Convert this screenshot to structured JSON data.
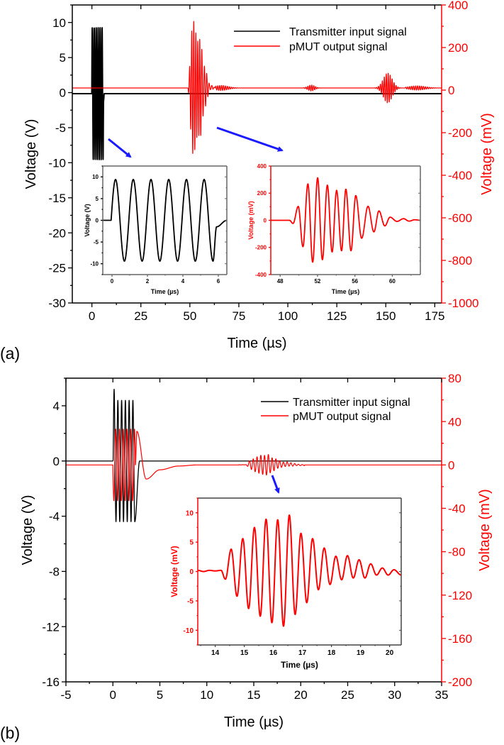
{
  "figure": {
    "panel_labels": [
      "(a)",
      "(b)"
    ],
    "arrow_color": "#1a1aff"
  },
  "chart_data": [
    {
      "id": "a-main",
      "type": "line",
      "panel": "(a)",
      "xlabel": "Time (µs)",
      "ylabel": "Voltage (V)",
      "y2label": "Voltage (mV)",
      "xlim": [
        -10,
        178.5
      ],
      "xticks": [
        0,
        25,
        50,
        75,
        100,
        125,
        150,
        175
      ],
      "xminor": 12.5,
      "ylim": [
        -30,
        12.5
      ],
      "yticks": [
        10,
        5,
        0,
        -5,
        -10,
        -15,
        -20,
        -25,
        -30
      ],
      "yminor": 2.5,
      "y2lim": [
        -1000,
        400
      ],
      "y2ticks": [
        400,
        200,
        0,
        -200,
        -400,
        -600,
        -800,
        -1000
      ],
      "y2minor": 100,
      "y2color": "#ff0000",
      "legend": {
        "position": "top-right",
        "entries": [
          {
            "label": "Transmitter input signal",
            "color": "#000000"
          },
          {
            "label": "pMUT output signal",
            "color": "#ff0000"
          }
        ]
      },
      "series": [
        {
          "name": "Transmitter input signal",
          "axis": "y",
          "color": "#000000",
          "baseline": -0.15,
          "width": 2,
          "components": [
            {
              "kind": "burst",
              "start": -0.05,
              "end": 5.7,
              "freq_MHz": 1,
              "amp": 9.4
            },
            {
              "kind": "extrema",
              "points": [
                [
                  5.7,
                  -9.4
                ],
                [
                  5.95,
                  -1
                ],
                [
                  6.3,
                  0
                ]
              ]
            }
          ]
        },
        {
          "name": "pMUT output signal",
          "axis": "y2",
          "color": "#ff0000",
          "baseline": 10,
          "width": 1.2,
          "components": [
            {
              "kind": "extrema",
              "points": [
                [
                  47,
                  0
                ],
                [
                  49,
                  0
                ],
                [
                  49.38,
                  -23
                ],
                [
                  49.94,
                  102
                ],
                [
                  50.44,
                  -194
                ],
                [
                  50.97,
                  268
                ],
                [
                  51.48,
                  -308
                ],
                [
                  52.01,
                  313
                ],
                [
                  52.52,
                  -290
                ],
                [
                  53.05,
                  259
                ],
                [
                  53.56,
                  -233
                ],
                [
                  54.04,
                  221
                ],
                [
                  54.57,
                  -224
                ],
                [
                  55.03,
                  229
                ],
                [
                  55.58,
                  -224
                ],
                [
                  56.09,
                  182
                ],
                [
                  56.72,
                  -132
                ],
                [
                  57.4,
                  103
                ],
                [
                  58.03,
                  -85
                ],
                [
                  58.57,
                  69
                ],
                [
                  59.2,
                  -41
                ],
                [
                  59.76,
                  23
                ],
                [
                  60.5,
                  -8
                ],
                [
                  61.2,
                  12
                ],
                [
                  61.8,
                  -6
                ],
                [
                  62.4,
                  4
                ],
                [
                  63,
                  0
                ]
              ]
            },
            {
              "kind": "burst",
              "start": 63,
              "end": 80,
              "freq_MHz": 1,
              "amp": 12,
              "envelope": "gauss",
              "center": 66,
              "width": 5
            },
            {
              "kind": "burst",
              "start": 108,
              "end": 117,
              "freq_MHz": 1,
              "amp": 14,
              "envelope": "gauss",
              "center": 112,
              "width": 2.5
            },
            {
              "kind": "burst",
              "start": 144,
              "end": 160,
              "freq_MHz": 1,
              "amp": 70,
              "envelope": "gauss",
              "center": 151,
              "width": 3.2
            },
            {
              "kind": "burst",
              "start": 160,
              "end": 178,
              "freq_MHz": 1,
              "amp": 10,
              "envelope": "gauss",
              "center": 166,
              "width": 6
            }
          ]
        }
      ]
    },
    {
      "id": "a-inset-input",
      "type": "line",
      "panel": "(a)",
      "xlabel": "Time (µs)",
      "ylabel": "Voltage (V)",
      "xlim": [
        -0.52,
        6.48
      ],
      "xticks": [
        0,
        2,
        4,
        6
      ],
      "xminor": 1,
      "ylim": [
        -12.5,
        12.5
      ],
      "yticks": [
        10,
        5,
        0,
        -5,
        -10
      ],
      "yminor": 2.5,
      "series": [
        {
          "name": "Transmitter input signal",
          "axis": "y",
          "color": "#000000",
          "baseline": 0,
          "width": 1.8,
          "components": [
            {
              "kind": "burst",
              "start": -0.05,
              "end": 5.7,
              "freq_MHz": 1,
              "amp": 9.4
            },
            {
              "kind": "extrema",
              "points": [
                [
                  5.7,
                  -9.4
                ],
                [
                  5.9,
                  -1.5
                ],
                [
                  6.48,
                  0
                ]
              ]
            }
          ]
        }
      ]
    },
    {
      "id": "a-inset-output",
      "type": "line",
      "panel": "(a)",
      "xlabel": "Time (µs)",
      "ylabel": "Voltage (mV)",
      "ycolor": "#ff0000",
      "xlim": [
        47,
        63
      ],
      "xticks": [
        48,
        52,
        56,
        60
      ],
      "xminor": 2,
      "ylim": [
        -400,
        400
      ],
      "yticks": [
        400,
        200,
        0,
        -200,
        -400
      ],
      "yminor": 100,
      "series": [
        {
          "name": "pMUT output signal",
          "axis": "y",
          "color": "#ff0000",
          "baseline": 0,
          "width": 1.8,
          "components": [
            {
              "kind": "extrema",
              "points": [
                [
                  47,
                  0
                ],
                [
                  49,
                  0
                ],
                [
                  49.38,
                  -23
                ],
                [
                  49.94,
                  102
                ],
                [
                  50.44,
                  -194
                ],
                [
                  50.97,
                  268
                ],
                [
                  51.48,
                  -308
                ],
                [
                  52.01,
                  313
                ],
                [
                  52.52,
                  -290
                ],
                [
                  53.05,
                  259
                ],
                [
                  53.56,
                  -233
                ],
                [
                  54.04,
                  221
                ],
                [
                  54.57,
                  -224
                ],
                [
                  55.03,
                  229
                ],
                [
                  55.58,
                  -224
                ],
                [
                  56.09,
                  182
                ],
                [
                  56.72,
                  -132
                ],
                [
                  57.4,
                  103
                ],
                [
                  58.03,
                  -85
                ],
                [
                  58.57,
                  69
                ],
                [
                  59.2,
                  -41
                ],
                [
                  59.76,
                  23
                ],
                [
                  60.5,
                  -8
                ],
                [
                  61.2,
                  12
                ],
                [
                  61.8,
                  -6
                ],
                [
                  62.4,
                  4
                ],
                [
                  63,
                  0
                ]
              ]
            }
          ]
        }
      ]
    },
    {
      "id": "b-main",
      "type": "line",
      "panel": "(b)",
      "xlabel": "Time (µs)",
      "ylabel": "Voltage (V)",
      "y2label": "Voltage (mV)",
      "xlim": [
        -5,
        35
      ],
      "xticks": [
        -5,
        0,
        5,
        10,
        15,
        20,
        25,
        30,
        35
      ],
      "xminor": 2.5,
      "ylim": [
        -16,
        6
      ],
      "yticks": [
        4,
        0,
        -4,
        -8,
        -12,
        -16
      ],
      "yminor": 2,
      "y2lim": [
        -200,
        80
      ],
      "y2ticks": [
        80,
        40,
        0,
        -40,
        -80,
        -120,
        -160,
        -200
      ],
      "y2minor": 20,
      "y2color": "#ff0000",
      "legend": {
        "position": "top-right",
        "entries": [
          {
            "label": "Transmitter input signal",
            "color": "#000000"
          },
          {
            "label": "pMUT output signal",
            "color": "#ff0000"
          }
        ]
      },
      "series": [
        {
          "name": "Transmitter input signal",
          "axis": "y",
          "color": "#000000",
          "baseline": 0,
          "width": 1.3,
          "components": [
            {
              "kind": "burst",
              "start": 0.03,
              "end": 2.33,
              "freq_MHz": 2.5,
              "amp": 4.4
            },
            {
              "kind": "extrema",
              "points": [
                [
                  0,
                  0
                ],
                [
                  0.13,
                  0.8
                ],
                [
                  0.25,
                  0
                ]
              ]
            },
            {
              "kind": "extrema",
              "points": [
                [
                  2.33,
                  -4.4
                ],
                [
                  2.85,
                  0
                ]
              ]
            }
          ]
        },
        {
          "name": "pMUT output signal",
          "axis": "y2",
          "color": "#ff0000",
          "baseline": 0,
          "width": 1.2,
          "components": [
            {
              "kind": "burst",
              "start": 0,
              "end": 2.4,
              "freq_MHz": 2.5,
              "amp": -33
            },
            {
              "kind": "extrema",
              "points": [
                [
                  2.4,
                  0
                ],
                [
                  2.55,
                  31
                ],
                [
                  3.55,
                  -13
                ],
                [
                  5,
                  -4.5
                ],
                [
                  7,
                  -1
                ],
                [
                  9,
                  0
                ]
              ]
            },
            {
              "kind": "extrema",
              "points": [
                [
                  13.4,
                  0.2
                ],
                [
                  13.6,
                  0
                ],
                [
                  13.8,
                  0.2
                ],
                [
                  14.0,
                  0.1
                ],
                [
                  14.2,
                  0.2
                ],
                [
                  14.35,
                  -1.3
                ],
                [
                  14.55,
                  3.8
                ],
                [
                  14.75,
                  -4.2
                ],
                [
                  14.95,
                  5.6
                ],
                [
                  15.15,
                  -6.3
                ],
                [
                  15.35,
                  7.5
                ],
                [
                  15.55,
                  -7.6
                ],
                [
                  15.75,
                  8.9
                ],
                [
                  15.95,
                  -8.7
                ],
                [
                  16.15,
                  8.8
                ],
                [
                  16.35,
                  -9.3
                ],
                [
                  16.55,
                  9.6
                ],
                [
                  16.75,
                  -7.3
                ],
                [
                  16.95,
                  6.5
                ],
                [
                  17.15,
                  -5.3
                ],
                [
                  17.35,
                  5.6
                ],
                [
                  17.55,
                  -3.1
                ],
                [
                  17.75,
                  4.0
                ],
                [
                  17.95,
                  -2.2
                ],
                [
                  18.15,
                  2.6
                ],
                [
                  18.35,
                  -1.4
                ],
                [
                  18.55,
                  2.7
                ],
                [
                  18.75,
                  -1.1
                ],
                [
                  18.95,
                  2.0
                ],
                [
                  19.15,
                  -1.1
                ],
                [
                  19.35,
                  1.3
                ],
                [
                  19.55,
                  -0.6
                ],
                [
                  19.75,
                  0.6
                ],
                [
                  19.95,
                  -0.6
                ],
                [
                  20.15,
                  0.3
                ],
                [
                  20.4,
                  -0.6
                ]
              ]
            }
          ]
        }
      ]
    },
    {
      "id": "b-inset-output",
      "type": "line",
      "panel": "(b)",
      "xlabel": "Time (µs)",
      "ylabel": "Voltage (mV)",
      "ycolor": "#ff0000",
      "xlim": [
        13.4,
        20.4
      ],
      "xticks": [
        14,
        15,
        16,
        17,
        18,
        19,
        20
      ],
      "xminor": 0.5,
      "ylim": [
        -12.5,
        12.5
      ],
      "yticks": [
        10,
        5,
        0,
        -5,
        -10
      ],
      "yminor": 2.5,
      "series": [
        {
          "name": "pMUT output signal",
          "axis": "y",
          "color": "#ff0000",
          "baseline": 0,
          "width": 2,
          "components": [
            {
              "kind": "extrema",
              "points": [
                [
                  13.4,
                  0.2
                ],
                [
                  13.6,
                  0
                ],
                [
                  13.8,
                  0.2
                ],
                [
                  14.0,
                  0.1
                ],
                [
                  14.2,
                  0.2
                ],
                [
                  14.35,
                  -1.3
                ],
                [
                  14.55,
                  3.8
                ],
                [
                  14.75,
                  -4.2
                ],
                [
                  14.95,
                  5.6
                ],
                [
                  15.15,
                  -6.3
                ],
                [
                  15.35,
                  7.5
                ],
                [
                  15.55,
                  -7.6
                ],
                [
                  15.75,
                  8.9
                ],
                [
                  15.95,
                  -8.7
                ],
                [
                  16.15,
                  8.8
                ],
                [
                  16.35,
                  -9.3
                ],
                [
                  16.55,
                  9.6
                ],
                [
                  16.75,
                  -7.3
                ],
                [
                  16.95,
                  6.5
                ],
                [
                  17.15,
                  -5.3
                ],
                [
                  17.35,
                  5.6
                ],
                [
                  17.55,
                  -3.1
                ],
                [
                  17.75,
                  4.0
                ],
                [
                  17.95,
                  -2.2
                ],
                [
                  18.15,
                  2.6
                ],
                [
                  18.35,
                  -1.4
                ],
                [
                  18.55,
                  2.7
                ],
                [
                  18.75,
                  -1.1
                ],
                [
                  18.95,
                  2.0
                ],
                [
                  19.15,
                  -1.1
                ],
                [
                  19.35,
                  1.3
                ],
                [
                  19.55,
                  -0.6
                ],
                [
                  19.75,
                  0.6
                ],
                [
                  19.95,
                  -0.6
                ],
                [
                  20.15,
                  0.3
                ],
                [
                  20.4,
                  -0.6
                ]
              ]
            }
          ]
        }
      ]
    }
  ]
}
